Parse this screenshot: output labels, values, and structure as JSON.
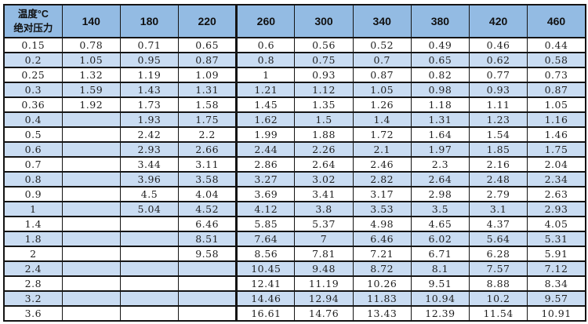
{
  "table": {
    "corner_top": "温度°C",
    "corner_bottom": "绝对压力",
    "columns": [
      "140",
      "180",
      "220",
      "260",
      "300",
      "340",
      "380",
      "420",
      "460"
    ],
    "thick_divider_before_column": "260",
    "rows": [
      {
        "label": "0.15",
        "values": [
          "0.78",
          "0.71",
          "0.65",
          "0.6",
          "0.56",
          "0.52",
          "0.49",
          "0.46",
          "0.44"
        ]
      },
      {
        "label": "0.2",
        "values": [
          "1.05",
          "0.95",
          "0.87",
          "0.8",
          "0.75",
          "0.7",
          "0.65",
          "0.62",
          "0.58"
        ]
      },
      {
        "label": "0.25",
        "values": [
          "1.32",
          "1.19",
          "1.09",
          "1",
          "0.93",
          "0.87",
          "0.82",
          "0.77",
          "0.73"
        ]
      },
      {
        "label": "0.3",
        "values": [
          "1.59",
          "1.43",
          "1.31",
          "1.21",
          "1.12",
          "1.05",
          "0.98",
          "0.93",
          "0.87"
        ]
      },
      {
        "label": "0.36",
        "values": [
          "1.92",
          "1.73",
          "1.58",
          "1.45",
          "1.35",
          "1.26",
          "1.18",
          "1.11",
          "1.05"
        ]
      },
      {
        "label": "0.4",
        "values": [
          "",
          "1.93",
          "1.75",
          "1.62",
          "1.5",
          "1.4",
          "1.31",
          "1.23",
          "1.16"
        ]
      },
      {
        "label": "0.5",
        "values": [
          "",
          "2.42",
          "2.2",
          "1.99",
          "1.88",
          "1.72",
          "1.64",
          "1.54",
          "1.46"
        ]
      },
      {
        "label": "0.6",
        "values": [
          "",
          "2.93",
          "2.66",
          "2.44",
          "2.26",
          "2.1",
          "1.97",
          "1.85",
          "1.75"
        ]
      },
      {
        "label": "0.7",
        "values": [
          "",
          "3.44",
          "3.11",
          "2.86",
          "2.64",
          "2.46",
          "2.3",
          "2.16",
          "2.04"
        ]
      },
      {
        "label": "0.8",
        "values": [
          "",
          "3.96",
          "3.58",
          "3.27",
          "3.02",
          "2.82",
          "2.64",
          "2.48",
          "2.34"
        ]
      },
      {
        "label": "0.9",
        "values": [
          "",
          "4.5",
          "4.04",
          "3.69",
          "3.41",
          "3.17",
          "2.98",
          "2.79",
          "2.63"
        ]
      },
      {
        "label": "1",
        "values": [
          "",
          "5.04",
          "4.52",
          "4.12",
          "3.8",
          "3.53",
          "3.5",
          "3.1",
          "2.93"
        ]
      },
      {
        "label": "1.4",
        "values": [
          "",
          "",
          "6.46",
          "5.85",
          "5.37",
          "4.98",
          "4.65",
          "4.37",
          "4.05"
        ]
      },
      {
        "label": "1.8",
        "values": [
          "",
          "",
          "8.51",
          "7.64",
          "7",
          "6.46",
          "6.02",
          "5.64",
          "5.31"
        ]
      },
      {
        "label": "2",
        "values": [
          "",
          "",
          "9.58",
          "8.56",
          "7.81",
          "7.21",
          "6.71",
          "6.28",
          "5.91"
        ]
      },
      {
        "label": "2.4",
        "values": [
          "",
          "",
          "",
          "10.45",
          "9.48",
          "8.72",
          "8.1",
          "7.57",
          "7.12"
        ]
      },
      {
        "label": "2.8",
        "values": [
          "",
          "",
          "",
          "12.41",
          "11.19",
          "10.26",
          "9.51",
          "8.88",
          "8.34"
        ]
      },
      {
        "label": "3.2",
        "values": [
          "",
          "",
          "",
          "14.46",
          "12.94",
          "11.83",
          "10.94",
          "10.2",
          "9.57"
        ]
      },
      {
        "label": "3.6",
        "values": [
          "",
          "",
          "",
          "16.61",
          "14.76",
          "13.43",
          "12.39",
          "11.54",
          "10.91"
        ]
      }
    ],
    "colors": {
      "header_bg": "#93bbe3",
      "band_bg": "#c9dcf2",
      "border": "#141414",
      "text": "#1f1f1f"
    }
  }
}
